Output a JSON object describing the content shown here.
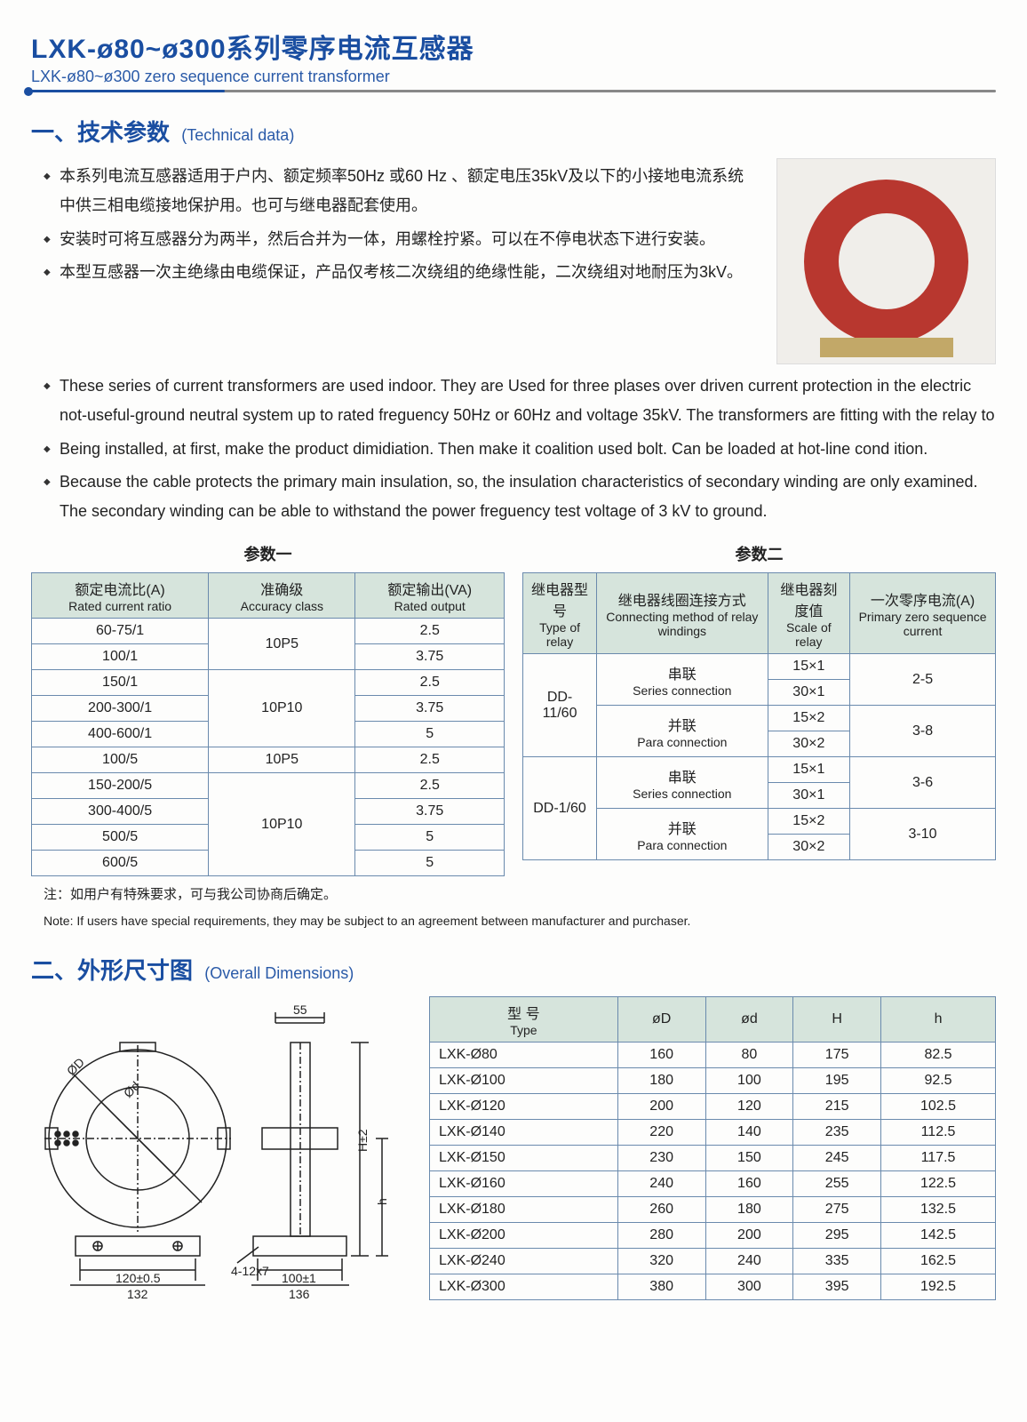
{
  "colors": {
    "title_blue": "#1a4ea1",
    "header_bg": "#d6e4dc",
    "border": "#6a8aad",
    "product_red": "#b8372f",
    "base_gold": "#c2a868"
  },
  "main_title_cn": "LXK-ø80~ø300系列零序电流互感器",
  "main_title_en": "LXK-ø80~ø300 zero sequence current transformer",
  "section1_cn": "一、技术参数",
  "section1_en": "(Technical data)",
  "bullets_cn": [
    "本系列电流互感器适用于户内、额定频率50Hz 或60 Hz 、额定电压35kV及以下的小接地电流系统中供三相电缆接地保护用。也可与继电器配套使用。",
    "安装时可将互感器分为两半，然后合并为一体，用螺栓拧紧。可以在不停电状态下进行安装。",
    "本型互感器一次主绝缘由电缆保证，产品仅考核二次绕组的绝缘性能，二次绕组对地耐压为3kV。"
  ],
  "bullets_en": [
    "These series of current transformers are used indoor. They are Used for three plases over driven current protection in the electric not-useful-ground neutral system up to rated freguency 50Hz or 60Hz and voltage 35kV. The transformers are fitting with the relay to",
    "Being installed, at first, make the product dimidiation. Then make it coalition used bolt. Can be loaded at hot-line cond ition.",
    "Because the cable protects the primary main insulation, so, the insulation characteristics of secondary winding are only examined. The secondary winding can be able to withstand the power freguency test voltage of 3 kV to ground."
  ],
  "table1": {
    "title": "参数一",
    "headers": [
      {
        "cn": "额定电流比(A)",
        "en": "Rated  current ratio"
      },
      {
        "cn": "准确级",
        "en": "Accuracy class"
      },
      {
        "cn": "额定输出(VA)",
        "en": "Rated output"
      }
    ],
    "groups": [
      {
        "acc": "10P5",
        "rows": [
          [
            "60-75/1",
            "2.5"
          ],
          [
            "100/1",
            "3.75"
          ]
        ]
      },
      {
        "acc": "10P10",
        "rows": [
          [
            "150/1",
            "2.5"
          ],
          [
            "200-300/1",
            "3.75"
          ],
          [
            "400-600/1",
            "5"
          ]
        ]
      },
      {
        "acc": "10P5",
        "rows": [
          [
            "100/5",
            "2.5"
          ]
        ]
      },
      {
        "acc": "10P10",
        "rows": [
          [
            "150-200/5",
            "2.5"
          ],
          [
            "300-400/5",
            "3.75"
          ],
          [
            "500/5",
            "5"
          ],
          [
            "600/5",
            "5"
          ]
        ]
      }
    ]
  },
  "table2": {
    "title": "参数二",
    "headers": [
      {
        "cn": "继电器型号",
        "en": "Type of relay"
      },
      {
        "cn": "继电器线圈连接方式",
        "en": "Connecting method of relay windings"
      },
      {
        "cn": "继电器刻度值",
        "en": "Scale of relay"
      },
      {
        "cn": "一次零序电流(A)",
        "en": "Primary zero sequence current"
      }
    ],
    "groups": [
      {
        "relay": "DD-11/60",
        "subs": [
          {
            "conn_cn": "串联",
            "conn_en": "Series connection",
            "rows": [
              [
                "15×1"
              ],
              [
                "30×1"
              ]
            ],
            "cur": "2-5"
          },
          {
            "conn_cn": "并联",
            "conn_en": "Para connection",
            "rows": [
              [
                "15×2"
              ],
              [
                "30×2"
              ]
            ],
            "cur": "3-8"
          }
        ]
      },
      {
        "relay": "DD-1/60",
        "subs": [
          {
            "conn_cn": "串联",
            "conn_en": "Series connection",
            "rows": [
              [
                "15×1"
              ],
              [
                "30×1"
              ]
            ],
            "cur": "3-6"
          },
          {
            "conn_cn": "并联",
            "conn_en": "Para connection",
            "rows": [
              [
                "15×2"
              ],
              [
                "30×2"
              ]
            ],
            "cur": "3-10"
          }
        ]
      }
    ]
  },
  "note_cn": "注：如用户有特殊要求，可与我公司协商后确定。",
  "note_en": "Note:  If users have special requirements, they may be subject to an agreement between manufacturer and purchaser.",
  "section2_cn": "二、外形尺寸图",
  "section2_en": "(Overall  Dimensions)",
  "diagram": {
    "labels": {
      "top_w": "55",
      "oD": "ØD",
      "od": "Ød",
      "H": "H±2",
      "h": "h",
      "holes": "4-12x7",
      "base1": "120±0.5",
      "base1_total": "132",
      "base2": "100±1",
      "base2_total": "136"
    }
  },
  "dim_table": {
    "headers": [
      {
        "cn": "型 号",
        "en": "Type"
      },
      {
        "cn": "øD",
        "en": ""
      },
      {
        "cn": "ød",
        "en": ""
      },
      {
        "cn": "H",
        "en": ""
      },
      {
        "cn": "h",
        "en": ""
      }
    ],
    "rows": [
      [
        "LXK-Ø80",
        "160",
        "80",
        "175",
        "82.5"
      ],
      [
        "LXK-Ø100",
        "180",
        "100",
        "195",
        "92.5"
      ],
      [
        "LXK-Ø120",
        "200",
        "120",
        "215",
        "102.5"
      ],
      [
        "LXK-Ø140",
        "220",
        "140",
        "235",
        "112.5"
      ],
      [
        "LXK-Ø150",
        "230",
        "150",
        "245",
        "117.5"
      ],
      [
        "LXK-Ø160",
        "240",
        "160",
        "255",
        "122.5"
      ],
      [
        "LXK-Ø180",
        "260",
        "180",
        "275",
        "132.5"
      ],
      [
        "LXK-Ø200",
        "280",
        "200",
        "295",
        "142.5"
      ],
      [
        "LXK-Ø240",
        "320",
        "240",
        "335",
        "162.5"
      ],
      [
        "LXK-Ø300",
        "380",
        "300",
        "395",
        "192.5"
      ]
    ]
  }
}
